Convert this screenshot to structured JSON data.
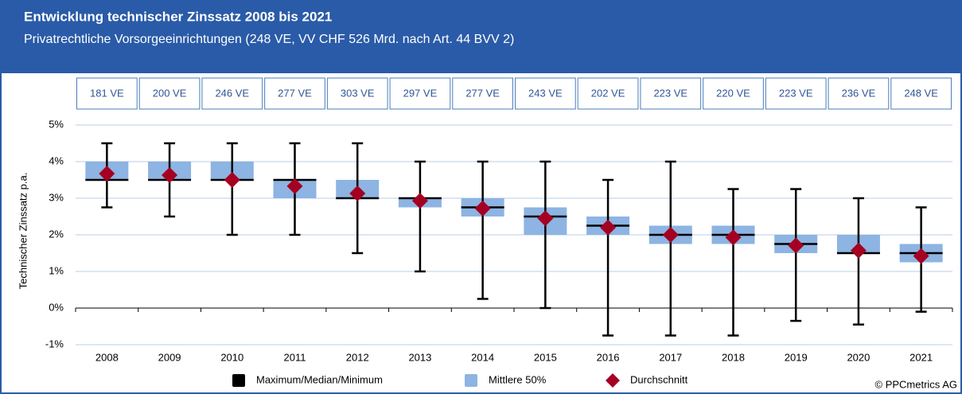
{
  "chart_data": {
    "type": "box",
    "title": "Entwicklung technischer Zinssatz 2008 bis 2021",
    "subtitle": "Privatrechtliche Vorsorgeeinrichtungen (248 VE, VV CHF 526  Mrd. nach Art. 44 BVV 2)",
    "y_label": "Technischer Zinssatz p.a.",
    "source": "© PPCmetrics AG",
    "categories": [
      "2008",
      "2009",
      "2010",
      "2011",
      "2012",
      "2013",
      "2014",
      "2015",
      "2016",
      "2017",
      "2018",
      "2019",
      "2020",
      "2021"
    ],
    "box_labels": [
      "181 VE",
      "200 VE",
      "246 VE",
      "277 VE",
      "303 VE",
      "297 VE",
      "277 VE",
      "243 VE",
      "202 VE",
      "223 VE",
      "220 VE",
      "223 VE",
      "236 VE",
      "248 VE"
    ],
    "series": [
      {
        "name": "Maximum/Median/Minimum",
        "color": "#000000",
        "max": [
          4.5,
          4.5,
          4.5,
          4.5,
          4.5,
          4.0,
          4.0,
          4.0,
          3.5,
          4.0,
          3.25,
          3.25,
          3.0,
          2.75
        ],
        "median": [
          3.5,
          3.5,
          3.5,
          3.5,
          3.0,
          3.0,
          2.75,
          2.5,
          2.25,
          2.0,
          2.0,
          1.75,
          1.5,
          1.5
        ],
        "min": [
          2.75,
          2.5,
          2.0,
          2.0,
          1.5,
          1.0,
          0.25,
          0.0,
          -0.75,
          -0.75,
          -0.75,
          -0.35,
          -0.45,
          -0.1
        ]
      },
      {
        "name": "Mittlere 50%",
        "color": "#8db4e2",
        "q1": [
          3.5,
          3.5,
          3.5,
          3.0,
          3.0,
          2.75,
          2.5,
          2.0,
          2.0,
          1.75,
          1.75,
          1.5,
          1.5,
          1.25
        ],
        "q3": [
          4.0,
          4.0,
          4.0,
          3.5,
          3.5,
          3.0,
          3.0,
          2.75,
          2.5,
          2.25,
          2.25,
          2.0,
          2.0,
          1.75
        ]
      },
      {
        "name": "Durchschnitt",
        "color": "#a50021",
        "values": [
          3.67,
          3.63,
          3.5,
          3.33,
          3.13,
          2.93,
          2.72,
          2.45,
          2.2,
          2.0,
          1.93,
          1.71,
          1.57,
          1.42
        ]
      }
    ],
    "ylim": [
      -1,
      5
    ],
    "yticks": [
      {
        "value": -1,
        "label": "-1%"
      },
      {
        "value": 0,
        "label": "0%"
      },
      {
        "value": 1,
        "label": "1%"
      },
      {
        "value": 2,
        "label": "2%"
      },
      {
        "value": 3,
        "label": "3%"
      },
      {
        "value": 4,
        "label": "4%"
      },
      {
        "value": 5,
        "label": "5%"
      }
    ],
    "grid": true,
    "legend": "bottom"
  }
}
